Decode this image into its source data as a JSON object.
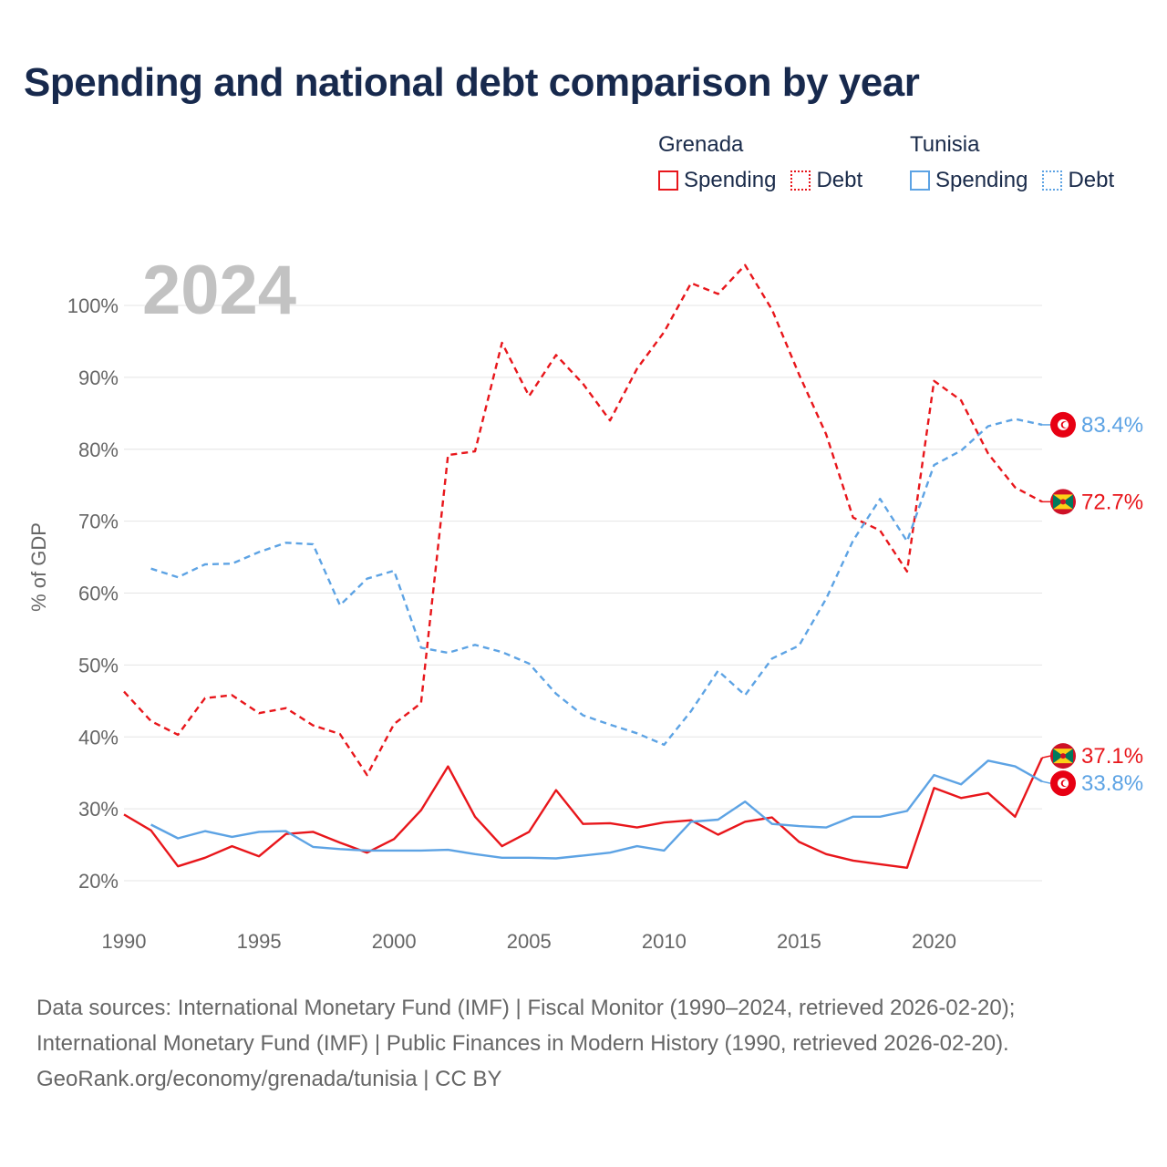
{
  "title": "Spending and national debt comparison by year",
  "legend": {
    "groups": [
      {
        "country": "Grenada",
        "items": [
          {
            "label": "Spending"
          },
          {
            "label": "Debt"
          }
        ]
      },
      {
        "country": "Tunisia",
        "items": [
          {
            "label": "Spending"
          },
          {
            "label": "Debt"
          }
        ]
      }
    ]
  },
  "chart_data": {
    "type": "line",
    "year_label": "2024",
    "ylabel": "% of GDP",
    "ylim": [
      20,
      106
    ],
    "xlim": [
      1990,
      2024
    ],
    "x_ticks": [
      1990,
      1995,
      2000,
      2005,
      2010,
      2015,
      2020
    ],
    "y_ticks": [
      20,
      30,
      40,
      50,
      60,
      70,
      80,
      90,
      100
    ],
    "y_tick_labels": [
      "20%",
      "30%",
      "40%",
      "50%",
      "60%",
      "70%",
      "80%",
      "90%",
      "100%"
    ],
    "colors": {
      "Grenada": "#e8161b",
      "Tunisia": "#5da3e4"
    },
    "series": [
      {
        "name": "Grenada Spending",
        "country": "Grenada",
        "style": "solid",
        "x": [
          1990,
          1991,
          1992,
          1993,
          1994,
          1995,
          1996,
          1997,
          1998,
          1999,
          2000,
          2001,
          2002,
          2003,
          2004,
          2005,
          2006,
          2007,
          2008,
          2009,
          2010,
          2011,
          2012,
          2013,
          2014,
          2015,
          2016,
          2017,
          2018,
          2019,
          2020,
          2021,
          2022,
          2023,
          2024
        ],
        "values": [
          29.2,
          27.0,
          22.0,
          23.2,
          24.8,
          23.4,
          26.5,
          26.8,
          25.3,
          23.9,
          25.8,
          29.8,
          35.9,
          28.9,
          24.8,
          26.8,
          32.6,
          27.9,
          28.0,
          27.4,
          28.1,
          28.4,
          26.4,
          28.2,
          28.8,
          25.4,
          23.7,
          22.8,
          22.3,
          21.8,
          32.9,
          31.5,
          32.2,
          28.9,
          37.1
        ],
        "end_label": "37.1%"
      },
      {
        "name": "Grenada Debt",
        "country": "Grenada",
        "style": "dashed",
        "x": [
          1990,
          1991,
          1992,
          1993,
          1994,
          1995,
          1996,
          1997,
          1998,
          1999,
          2000,
          2001,
          2002,
          2003,
          2004,
          2005,
          2006,
          2007,
          2008,
          2009,
          2010,
          2011,
          2012,
          2013,
          2014,
          2015,
          2016,
          2017,
          2018,
          2019,
          2020,
          2021,
          2022,
          2023,
          2024
        ],
        "values": [
          46.3,
          42.2,
          40.3,
          45.4,
          45.8,
          43.3,
          44.0,
          41.6,
          40.4,
          34.7,
          41.8,
          44.7,
          79.2,
          79.7,
          94.8,
          87.4,
          93.1,
          89.1,
          84.0,
          91.2,
          96.3,
          103.1,
          101.6,
          105.6,
          99.4,
          90.4,
          82.1,
          70.5,
          68.7,
          63.0,
          89.5,
          86.8,
          79.4,
          74.7,
          72.7
        ],
        "end_label": "72.7%"
      },
      {
        "name": "Tunisia Spending",
        "country": "Tunisia",
        "style": "solid",
        "x": [
          1991,
          1992,
          1993,
          1994,
          1995,
          1996,
          1997,
          1998,
          1999,
          2000,
          2001,
          2002,
          2003,
          2004,
          2005,
          2006,
          2007,
          2008,
          2009,
          2010,
          2011,
          2012,
          2013,
          2014,
          2015,
          2016,
          2017,
          2018,
          2019,
          2020,
          2021,
          2022,
          2023,
          2024
        ],
        "values": [
          27.8,
          25.9,
          26.9,
          26.1,
          26.8,
          26.9,
          24.7,
          24.4,
          24.2,
          24.2,
          24.2,
          24.3,
          23.7,
          23.2,
          23.2,
          23.1,
          23.5,
          23.9,
          24.8,
          24.2,
          28.2,
          28.5,
          31.0,
          27.9,
          27.6,
          27.4,
          28.9,
          28.9,
          29.7,
          34.7,
          33.4,
          36.7,
          35.9,
          33.8
        ],
        "end_label": "33.8%"
      },
      {
        "name": "Tunisia Debt",
        "country": "Tunisia",
        "style": "dashed",
        "x": [
          1991,
          1992,
          1993,
          1994,
          1995,
          1996,
          1997,
          1998,
          1999,
          2000,
          2001,
          2002,
          2003,
          2004,
          2005,
          2006,
          2007,
          2008,
          2009,
          2010,
          2011,
          2012,
          2013,
          2014,
          2015,
          2016,
          2017,
          2018,
          2019,
          2020,
          2021,
          2022,
          2023,
          2024
        ],
        "values": [
          63.4,
          62.2,
          64.0,
          64.1,
          65.7,
          67.0,
          66.8,
          58.3,
          62.0,
          63.1,
          52.4,
          51.7,
          52.8,
          51.8,
          50.2,
          46.0,
          43.0,
          41.7,
          40.5,
          38.9,
          43.6,
          49.2,
          45.8,
          50.9,
          52.7,
          59.2,
          67.3,
          73.1,
          67.2,
          77.8,
          79.8,
          83.2,
          84.2,
          83.4
        ],
        "end_label": "83.4%"
      }
    ]
  },
  "sources": {
    "line1": "Data sources: International Monetary Fund (IMF) | Fiscal Monitor (1990–2024, retrieved 2026-02-20);",
    "line2": "International Monetary Fund (IMF) | Public Finances in Modern History (1990, retrieved 2026-02-20).",
    "line3": "GeoRank.org/economy/grenada/tunisia | CC BY"
  }
}
